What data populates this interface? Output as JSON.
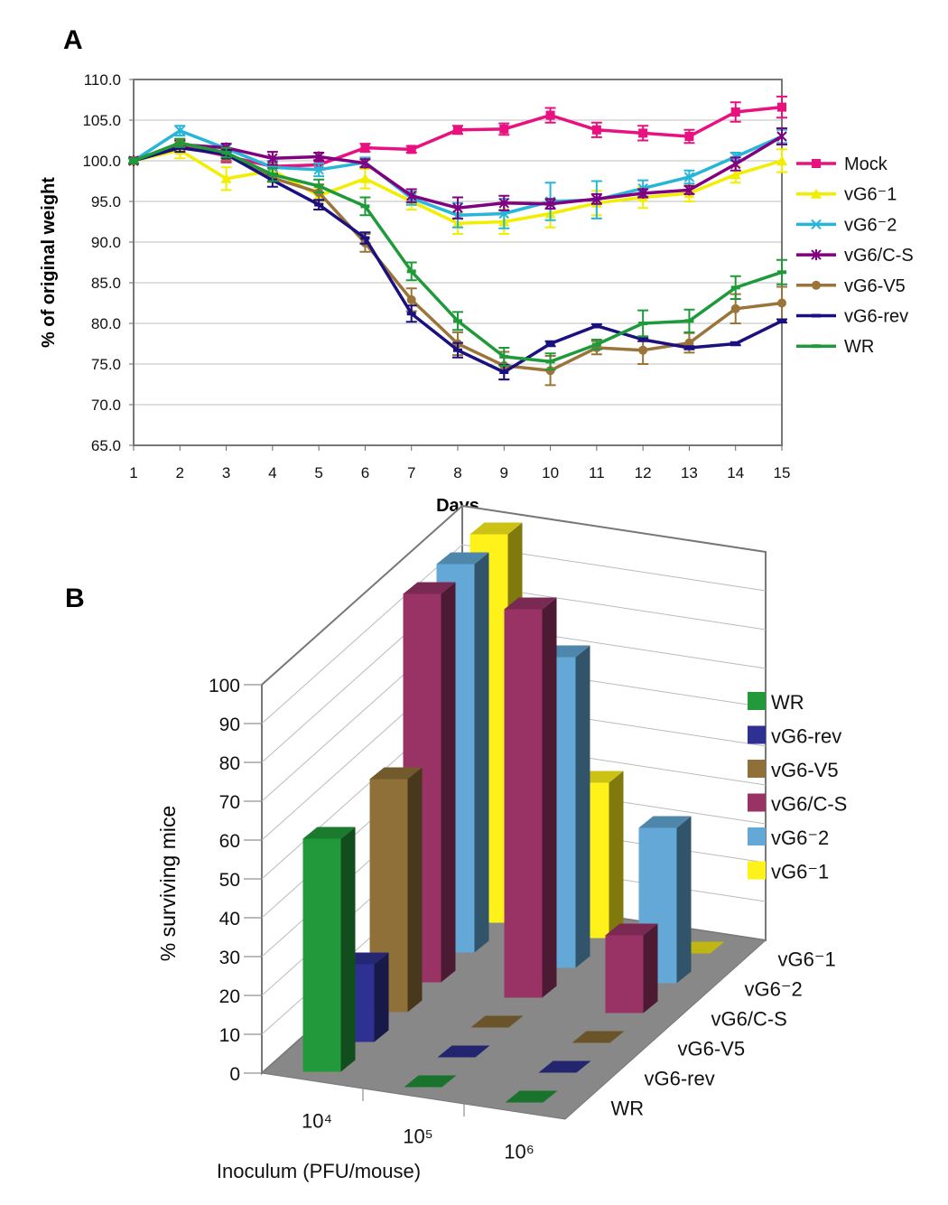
{
  "chart_data": [
    {
      "panel_label": "A",
      "type": "line",
      "xlabel": "Days",
      "ylabel": "% of original weight",
      "ylim": [
        65.0,
        110.0
      ],
      "yticks": [
        "65.0",
        "70.0",
        "75.0",
        "80.0",
        "85.0",
        "90.0",
        "95.0",
        "100.0",
        "105.0",
        "110.0"
      ],
      "x": [
        1,
        2,
        3,
        4,
        5,
        6,
        7,
        8,
        9,
        10,
        11,
        12,
        13,
        14,
        15
      ],
      "grid": true,
      "legend": "right",
      "series": [
        {
          "name": "Mock",
          "color": "#e8117f",
          "marker": "square",
          "values": [
            100,
            101.8,
            100.6,
            99.3,
            99.5,
            101.6,
            101.4,
            103.8,
            103.9,
            105.6,
            103.8,
            103.4,
            103.0,
            106.0,
            106.6
          ],
          "error": [
            0.3,
            0.6,
            0.8,
            0.6,
            0.6,
            0.5,
            0.4,
            0.5,
            0.7,
            0.9,
            0.9,
            0.9,
            0.8,
            1.2,
            1.3
          ]
        },
        {
          "name": "vG6⁻1",
          "color": "#f2ee00",
          "marker": "triangle",
          "values": [
            100,
            101.3,
            97.8,
            98.8,
            95.7,
            97.8,
            95.0,
            92.3,
            92.5,
            93.5,
            94.8,
            95.5,
            96.0,
            98.3,
            100.0
          ],
          "error": [
            0.3,
            1.0,
            1.4,
            0.8,
            1.0,
            1.2,
            1.0,
            1.3,
            1.5,
            1.7,
            1.5,
            1.3,
            1.0,
            1.0,
            1.4
          ]
        },
        {
          "name": "vG6⁻2",
          "color": "#27b5d8",
          "marker": "x",
          "values": [
            100,
            103.7,
            101.5,
            99.2,
            98.9,
            99.8,
            95.4,
            93.3,
            93.5,
            95.0,
            95.2,
            96.6,
            98.0,
            100.5,
            103.0
          ],
          "error": [
            0.3,
            0.6,
            0.6,
            0.8,
            0.8,
            0.6,
            0.8,
            1.5,
            1.8,
            2.3,
            2.3,
            1.0,
            0.8,
            0.5,
            0.8
          ]
        },
        {
          "name": "vG6/C-S",
          "color": "#800080",
          "marker": "asterisk",
          "values": [
            100,
            102.0,
            101.6,
            100.3,
            100.5,
            99.7,
            95.7,
            94.2,
            94.8,
            94.7,
            95.3,
            96.0,
            96.4,
            99.6,
            103.0
          ],
          "error": [
            0.3,
            0.5,
            0.5,
            0.8,
            0.5,
            0.5,
            0.8,
            1.3,
            0.9,
            0.6,
            0.6,
            0.5,
            0.5,
            0.8,
            1.0
          ]
        },
        {
          "name": "vG6-V5",
          "color": "#9a7438",
          "marker": "circle",
          "values": [
            100,
            102.2,
            100.8,
            97.9,
            96.1,
            89.9,
            82.9,
            77.5,
            74.8,
            74.2,
            77.0,
            76.7,
            77.6,
            81.8,
            82.5
          ],
          "error": [
            0.3,
            0.5,
            0.8,
            0.5,
            1.0,
            1.1,
            1.4,
            1.4,
            1.7,
            1.8,
            0.8,
            1.7,
            1.2,
            1.8,
            2.0
          ]
        },
        {
          "name": "vG6-rev",
          "color": "#1a1080",
          "marker": "dash",
          "values": [
            100,
            101.6,
            100.8,
            97.6,
            94.6,
            90.5,
            81.2,
            76.7,
            74.0,
            77.5,
            79.7,
            78.0,
            77.0,
            77.5,
            80.3
          ],
          "error": [
            0.3,
            0.5,
            0.5,
            0.8,
            0.6,
            0.7,
            1.0,
            0.9,
            0.9,
            0.3,
            0.2,
            0.2,
            0.2,
            0.2,
            0.2
          ]
        },
        {
          "name": "WR",
          "color": "#1f9a3a",
          "marker": "dash",
          "values": [
            100,
            102.2,
            101.0,
            98.3,
            96.9,
            94.4,
            86.4,
            80.3,
            75.9,
            75.3,
            77.4,
            80.0,
            80.3,
            84.4,
            86.3
          ],
          "error": [
            0.3,
            0.5,
            0.6,
            0.8,
            0.8,
            1.1,
            1.1,
            1.1,
            1.1,
            1.0,
            0.6,
            1.6,
            1.4,
            1.4,
            1.5
          ]
        }
      ]
    },
    {
      "panel_label": "B",
      "type": "bar",
      "subtype": "3d",
      "xlabel": "Inoculum (PFU/mouse)",
      "ylabel": "% surviving mice",
      "ylim": [
        0,
        100
      ],
      "yticks": [
        "0",
        "10",
        "20",
        "30",
        "40",
        "50",
        "60",
        "70",
        "80",
        "90",
        "100"
      ],
      "categories": [
        "10⁴",
        "10⁵",
        "10⁶"
      ],
      "legend": "right",
      "series": [
        {
          "name": "WR",
          "color": "#22993a",
          "values": [
            60,
            0,
            0
          ]
        },
        {
          "name": "vG6-rev",
          "color": "#2e3192",
          "values": [
            20,
            0,
            0
          ]
        },
        {
          "name": "vG6-V5",
          "color": "#8f7038",
          "values": [
            60,
            0,
            0
          ]
        },
        {
          "name": "vG6/C-S",
          "color": "#993366",
          "values": [
            100,
            100,
            20
          ]
        },
        {
          "name": "vG6⁻2",
          "color": "#63a8d6",
          "values": [
            100,
            80,
            40
          ]
        },
        {
          "name": "vG6⁻1",
          "color": "#fff21a",
          "values": [
            100,
            40,
            0
          ]
        }
      ]
    }
  ]
}
